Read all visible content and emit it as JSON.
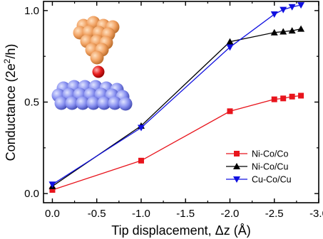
{
  "chart_data": {
    "type": "line",
    "xlabel": "Tip displacement, Δz (Å)",
    "ylabel": "Conductance (2e²/h)",
    "ylabel_base": "Conductance (2e",
    "ylabel_sup": "2",
    "ylabel_tail": "/h)",
    "xlim": [
      0.1,
      -3.0
    ],
    "ylim": [
      -0.05,
      1.05
    ],
    "x_ticks": [
      0.0,
      -0.5,
      -1.0,
      -1.5,
      -2.0,
      -2.5,
      -3.0
    ],
    "x_tick_labels": [
      "0.0",
      "-0.5",
      "-1.0",
      "-1.5",
      "-2.0",
      "-2.5",
      "-3.0"
    ],
    "y_ticks": [
      0.0,
      0.5,
      1.0
    ],
    "y_tick_labels": [
      "0.0",
      "0.5",
      "1.0"
    ],
    "legend_position": "lower-right",
    "series": [
      {
        "name": "Ni-Co/Co",
        "color": "#e8141c",
        "marker": "square",
        "x": [
          0.0,
          -1.0,
          -2.0,
          -2.5,
          -2.6,
          -2.7,
          -2.8
        ],
        "y": [
          0.02,
          0.18,
          0.45,
          0.515,
          0.52,
          0.53,
          0.535
        ]
      },
      {
        "name": "Ni-Co/Cu",
        "color": "#000000",
        "marker": "triangle-up",
        "x": [
          0.0,
          -1.0,
          -2.0,
          -2.5,
          -2.6,
          -2.7,
          -2.8
        ],
        "y": [
          0.04,
          0.37,
          0.83,
          0.88,
          0.885,
          0.89,
          0.9
        ]
      },
      {
        "name": "Cu-Co/Cu",
        "color": "#1010e0",
        "marker": "triangle-down",
        "x": [
          0.0,
          -1.0,
          -2.0,
          -2.5,
          -2.6,
          -2.7,
          -2.8
        ],
        "y": [
          0.05,
          0.36,
          0.8,
          0.98,
          1.005,
          1.02,
          1.03
        ]
      }
    ]
  },
  "illustration": {
    "tip_atom_color": "#f0a060",
    "adatom_color": "#e82020",
    "surface_atom_color": "#8890f0"
  }
}
